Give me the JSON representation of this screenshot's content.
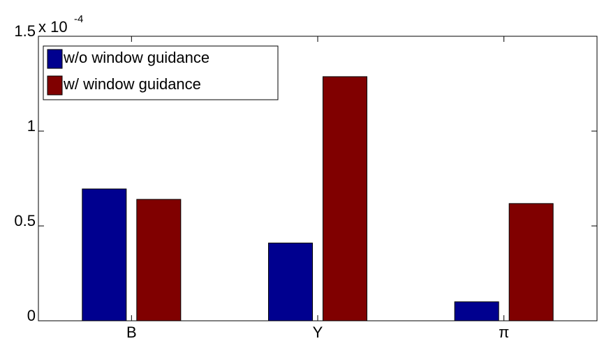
{
  "chart_data": {
    "type": "bar",
    "scale_label": "x 10",
    "scale_exponent": "-4",
    "categories": [
      "B",
      "Y",
      "π"
    ],
    "series": [
      {
        "name": "w/o window guidance",
        "color": "#00008f",
        "values": [
          0.695,
          0.41,
          0.1
        ]
      },
      {
        "name": "w/ window guidance",
        "color": "#800000",
        "values": [
          0.64,
          1.287,
          0.618
        ]
      }
    ],
    "ylim": [
      0,
      1.5
    ],
    "yticks": [
      0,
      0.5,
      1,
      1.5
    ],
    "legend": "upper left",
    "grid": false
  }
}
